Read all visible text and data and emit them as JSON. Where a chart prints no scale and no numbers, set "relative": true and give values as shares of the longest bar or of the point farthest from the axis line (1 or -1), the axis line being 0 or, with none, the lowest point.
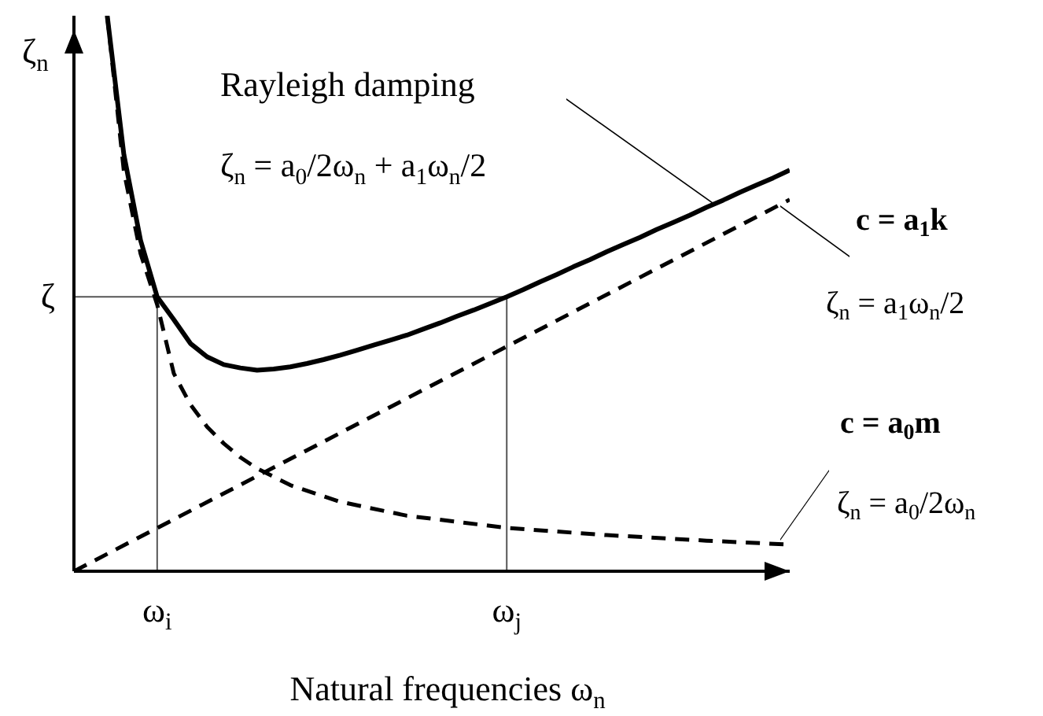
{
  "chart_data": {
    "type": "line",
    "relative": true,
    "xlabel": "Natural frequencies ω$_{n}$",
    "ylabel": "ζ$_{n}$",
    "categories": [
      null,
      null,
      null,
      null,
      null,
      "ω$_{i}$",
      null,
      null,
      null,
      null,
      null,
      null,
      null,
      null,
      null,
      null,
      null,
      null,
      null,
      null,
      null,
      null,
      null,
      null,
      null,
      null,
      "ω$_{j}$",
      null,
      null,
      null,
      null,
      null,
      null,
      null,
      null,
      null,
      null,
      null,
      null,
      null,
      null,
      null,
      null,
      null
    ],
    "series": [
      {
        "color": "#000000",
        "line_style": "solid",
        "values": [
          null,
          null,
          1.0,
          0.75,
          0.596,
          0.494,
          0.453,
          0.41,
          0.386,
          0.372,
          0.366,
          0.362,
          0.364,
          0.368,
          0.374,
          0.381,
          0.389,
          0.398,
          0.407,
          0.416,
          0.425,
          0.436,
          0.447,
          0.459,
          0.47,
          0.482,
          0.494,
          0.507,
          0.521,
          0.534,
          0.548,
          0.561,
          0.575,
          0.588,
          0.601,
          0.615,
          0.628,
          0.641,
          0.655,
          0.668,
          0.682,
          0.695,
          0.708,
          0.722
        ]
      },
      {
        "color": "#000000",
        "line_style": "dashed",
        "values": [
          0,
          null,
          null,
          null,
          null,
          null,
          null,
          null,
          null,
          null,
          null,
          null,
          null,
          null,
          null,
          null,
          null,
          null,
          null,
          null,
          null,
          null,
          null,
          null,
          null,
          null,
          null,
          null,
          null,
          null,
          null,
          null,
          null,
          null,
          null,
          null,
          null,
          null,
          null,
          null,
          null,
          null,
          null,
          0.669
        ]
      },
      {
        "color": "#000000",
        "line_style": "dashed",
        "values": [
          null,
          null,
          1.0,
          0.72,
          0.572,
          0.48,
          0.356,
          0.3,
          0.26,
          0.23,
          0.205,
          0.185,
          null,
          0.155,
          null,
          null,
          0.125,
          null,
          null,
          null,
          0.1,
          null,
          null,
          null,
          null,
          null,
          0.078,
          null,
          null,
          null,
          null,
          null,
          0.065,
          null,
          null,
          null,
          null,
          null,
          0.055,
          null,
          null,
          null,
          null,
          0.048
        ]
      }
    ],
    "ref_lines": [
      {
        "axis": "y",
        "value": 0.494,
        "label": "ζ",
        "color": "#555555"
      },
      {
        "axis": "x",
        "value": "ω$_{i}$",
        "color": "#555555"
      },
      {
        "axis": "x",
        "value": "ω$_{j}$",
        "color": "#555555"
      }
    ],
    "annotations": [
      "Rayleigh damping",
      "ζ$_{n}$ = a$_{0}$/2ω$_{n}$ + a$_{1}$ω$_{n}$/2",
      "c = a$_{1}$k",
      "ζ$_{n}$ = a$_{1}$ω$_{n}$/2",
      "c = a$_{0}$m",
      "ζ$_{n}$ = a$_{0}$/2ω$_{n}$"
    ]
  }
}
